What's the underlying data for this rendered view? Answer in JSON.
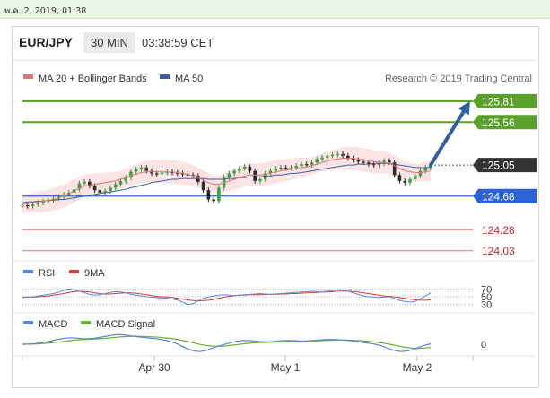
{
  "header": {
    "date_time": "พ.ค. 2, 2019, 01:38",
    "symbol": "EUR/JPY",
    "timeframe": "30 MIN",
    "time": "03:38:59 CET"
  },
  "legend": {
    "ma20_label": "MA 20 + Bollinger Bands",
    "ma50_label": "MA 50",
    "credit": "Research © 2019 Trading Central",
    "rsi_label": "RSI",
    "rsi_ma_label": "9MA",
    "macd_label": "MACD",
    "macd_signal_label": "MACD Signal"
  },
  "colors": {
    "resistance": "#5aa02c",
    "support": "#2a62d8",
    "support_far": "#e57373",
    "price_label": "#333333",
    "arrow": "#2e5fa3",
    "bollinger_fill": "#fde4e4",
    "ma20": "#e57373",
    "ma50": "#3a5fa8",
    "rsi": "#5b85e0",
    "rsi_ma": "#e53935",
    "macd": "#5b85e0",
    "macd_signal": "#6fae3a"
  },
  "levels": [
    {
      "value": "125.81",
      "role": "resistance"
    },
    {
      "value": "125.56",
      "role": "resistance"
    },
    {
      "value": "125.05",
      "role": "current"
    },
    {
      "value": "124.68",
      "role": "support"
    },
    {
      "value": "124.28",
      "role": "support-far"
    },
    {
      "value": "124.03",
      "role": "support-far"
    }
  ],
  "chart_data": {
    "type": "line",
    "x_ticks": [
      "Apr 30",
      "May 1",
      "May 2"
    ],
    "price_ylim": [
      123.92,
      126.0
    ],
    "current_price": 125.05,
    "forecast": {
      "from": 125.05,
      "to": 125.81
    },
    "price": [
      124.57,
      124.56,
      124.58,
      124.6,
      124.62,
      124.63,
      124.65,
      124.67,
      124.7,
      124.72,
      124.76,
      124.83,
      124.85,
      124.8,
      124.75,
      124.72,
      124.74,
      124.78,
      124.82,
      124.86,
      124.9,
      124.97,
      125.0,
      125.02,
      124.98,
      124.95,
      124.94,
      124.96,
      124.97,
      124.96,
      124.95,
      124.94,
      124.93,
      124.92,
      124.85,
      124.75,
      124.64,
      124.62,
      124.78,
      124.9,
      124.95,
      124.98,
      125.01,
      125.03,
      124.98,
      124.86,
      124.88,
      124.95,
      124.98,
      125.01,
      125.02,
      125.01,
      125.02,
      125.04,
      125.06,
      125.05,
      125.08,
      125.12,
      125.14,
      125.16,
      125.17,
      125.18,
      125.16,
      125.13,
      125.11,
      125.09,
      125.08,
      125.06,
      125.05,
      125.07,
      125.1,
      125.08,
      124.93,
      124.86,
      124.84,
      124.88,
      124.92,
      124.98,
      125.02,
      125.05
    ],
    "ma20": [
      124.58,
      124.59,
      124.6,
      124.61,
      124.62,
      124.63,
      124.64,
      124.66,
      124.68,
      124.71,
      124.74,
      124.77,
      124.8,
      124.81,
      124.82,
      124.83,
      124.84,
      124.85,
      124.86,
      124.88,
      124.9,
      124.92,
      124.94,
      124.96,
      124.97,
      124.97,
      124.97,
      124.97,
      124.97,
      124.97,
      124.96,
      124.95,
      124.94,
      124.92,
      124.9,
      124.87,
      124.84,
      124.82,
      124.82,
      124.84,
      124.86,
      124.88,
      124.9,
      124.92,
      124.93,
      124.93,
      124.93,
      124.94,
      124.95,
      124.97,
      124.98,
      124.99,
      125.0,
      125.01,
      125.02,
      125.03,
      125.04,
      125.06,
      125.08,
      125.1,
      125.11,
      125.12,
      125.13,
      125.13,
      125.13,
      125.12,
      125.11,
      125.1,
      125.09,
      125.08,
      125.08,
      125.07,
      125.04,
      125.01,
      124.98,
      124.97,
      124.96,
      124.96,
      124.97,
      124.98
    ],
    "ma50": [
      124.6,
      124.61,
      124.61,
      124.62,
      124.62,
      124.63,
      124.63,
      124.64,
      124.64,
      124.65,
      124.66,
      124.67,
      124.68,
      124.69,
      124.7,
      124.71,
      124.72,
      124.73,
      124.74,
      124.75,
      124.76,
      124.78,
      124.79,
      124.81,
      124.82,
      124.84,
      124.85,
      124.86,
      124.87,
      124.88,
      124.88,
      124.89,
      124.89,
      124.89,
      124.89,
      124.89,
      124.88,
      124.88,
      124.88,
      124.88,
      124.89,
      124.89,
      124.9,
      124.9,
      124.91,
      124.91,
      124.91,
      124.92,
      124.92,
      124.93,
      124.93,
      124.94,
      124.95,
      124.95,
      124.96,
      124.97,
      124.98,
      124.99,
      125.0,
      125.01,
      125.02,
      125.03,
      125.04,
      125.05,
      125.05,
      125.06,
      125.06,
      125.06,
      125.07,
      125.07,
      125.07,
      125.07,
      125.06,
      125.05,
      125.04,
      125.03,
      125.02,
      125.02,
      125.02,
      125.02
    ],
    "rsi_ticks": [
      "70",
      "50",
      "30"
    ],
    "rsi_ylim": [
      20,
      80
    ],
    "rsi": [
      48,
      49,
      50,
      52,
      54,
      56,
      58,
      62,
      66,
      70,
      68,
      64,
      60,
      56,
      54,
      55,
      58,
      61,
      63,
      62,
      60,
      56,
      54,
      52,
      50,
      49,
      48,
      47,
      46,
      44,
      42,
      36,
      30,
      32,
      40,
      46,
      49,
      52,
      54,
      55,
      54,
      53,
      54,
      55,
      56,
      57,
      58,
      57,
      56,
      57,
      58,
      59,
      60,
      61,
      62,
      63,
      64,
      63,
      62,
      64,
      66,
      68,
      67,
      64,
      60,
      56,
      52,
      50,
      49,
      48,
      49,
      50,
      46,
      40,
      38,
      36,
      38,
      44,
      52,
      60
    ],
    "rsi_ma": [
      49,
      49,
      49,
      50,
      51,
      52,
      54,
      56,
      58,
      61,
      63,
      64,
      63,
      62,
      60,
      58,
      57,
      57,
      58,
      59,
      60,
      60,
      59,
      57,
      55,
      53,
      51,
      50,
      49,
      48,
      46,
      44,
      42,
      40,
      39,
      40,
      41,
      43,
      46,
      49,
      51,
      53,
      54,
      54,
      55,
      55,
      55,
      56,
      56,
      56,
      57,
      57,
      58,
      58,
      59,
      60,
      61,
      61,
      62,
      62,
      63,
      64,
      64,
      64,
      63,
      62,
      60,
      58,
      56,
      54,
      52,
      51,
      50,
      48,
      46,
      44,
      42,
      41,
      41,
      42
    ],
    "macd_ticks": [
      "0"
    ],
    "macd_ylim": [
      -0.12,
      0.12
    ],
    "macd": [
      0.0,
      0.002,
      0.006,
      0.012,
      0.022,
      0.034,
      0.046,
      0.056,
      0.062,
      0.058,
      0.054,
      0.052,
      0.056,
      0.064,
      0.074,
      0.084,
      0.092,
      0.09,
      0.082,
      0.074,
      0.068,
      0.062,
      0.056,
      0.05,
      0.04,
      0.026,
      0.008,
      -0.02,
      -0.046,
      -0.064,
      -0.07,
      -0.06,
      -0.04,
      -0.02,
      -0.004,
      0.012,
      0.026,
      0.034,
      0.036,
      0.032,
      0.026,
      0.022,
      0.024,
      0.03,
      0.034,
      0.036,
      0.034,
      0.03,
      0.032,
      0.036,
      0.04,
      0.044,
      0.046,
      0.044,
      0.04,
      0.036,
      0.03,
      0.022,
      0.014,
      0.006,
      -0.004,
      -0.022,
      -0.044,
      -0.062,
      -0.07,
      -0.064,
      -0.05,
      -0.03,
      -0.01,
      0.004
    ],
    "macd_signal": [
      0.0,
      0.001,
      0.002,
      0.005,
      0.009,
      0.014,
      0.02,
      0.027,
      0.034,
      0.04,
      0.044,
      0.047,
      0.049,
      0.052,
      0.056,
      0.061,
      0.067,
      0.072,
      0.075,
      0.076,
      0.075,
      0.073,
      0.07,
      0.067,
      0.062,
      0.056,
      0.048,
      0.038,
      0.026,
      0.012,
      -0.002,
      -0.012,
      -0.018,
      -0.02,
      -0.018,
      -0.012,
      -0.005,
      0.002,
      0.008,
      0.013,
      0.016,
      0.018,
      0.019,
      0.021,
      0.024,
      0.026,
      0.028,
      0.029,
      0.03,
      0.031,
      0.033,
      0.035,
      0.037,
      0.039,
      0.04,
      0.039,
      0.037,
      0.034,
      0.03,
      0.025,
      0.019,
      0.011,
      0.001,
      -0.01,
      -0.022,
      -0.032,
      -0.038,
      -0.04,
      -0.037,
      -0.031
    ]
  }
}
